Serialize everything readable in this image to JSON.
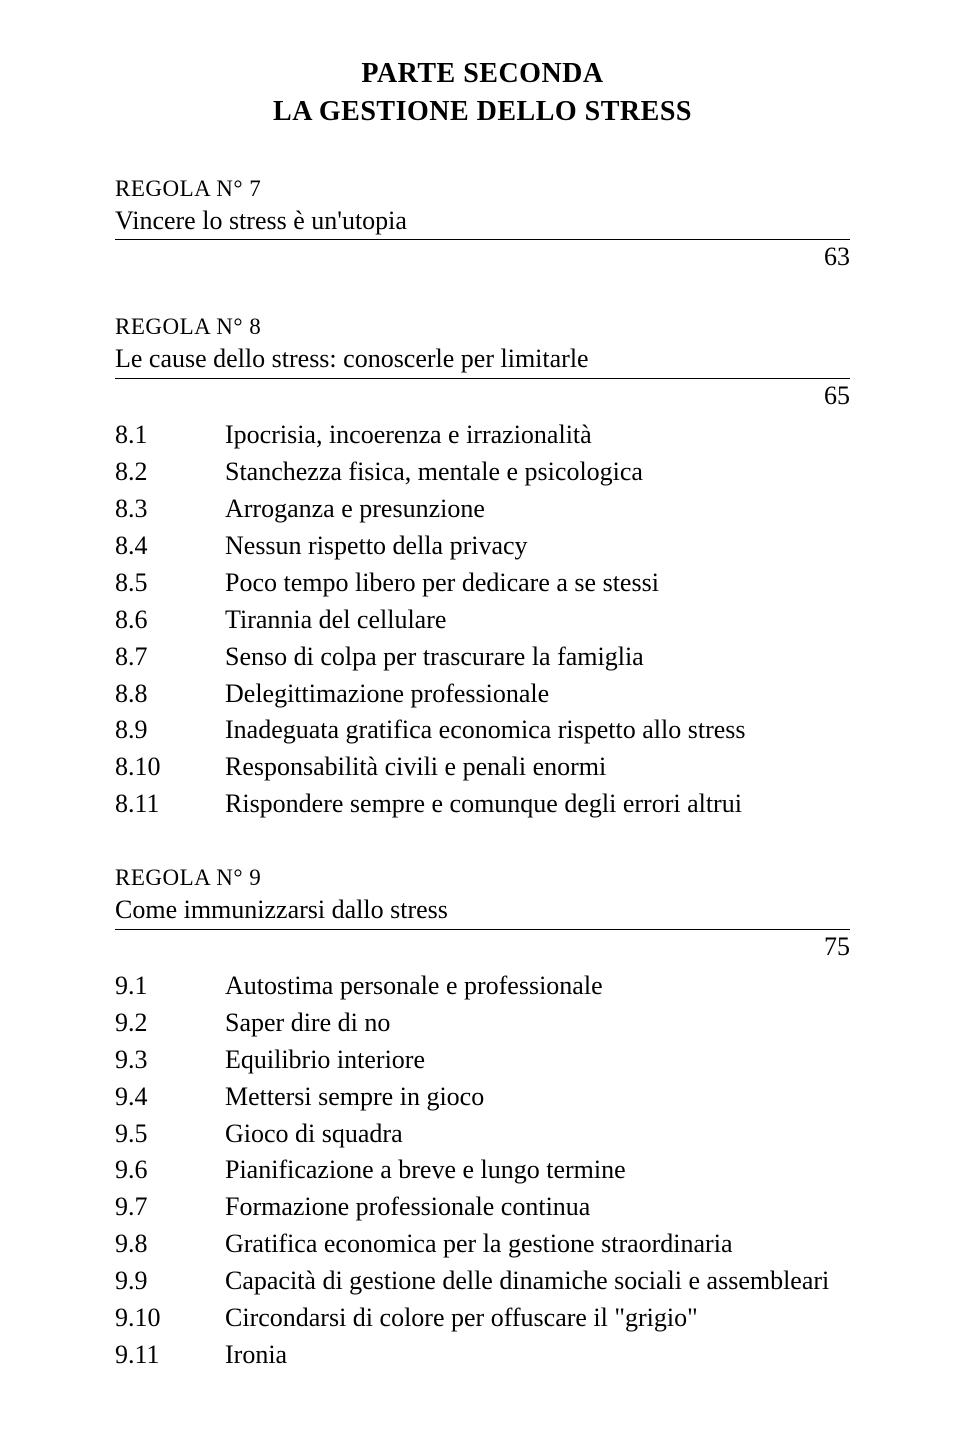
{
  "header": {
    "line1": "PARTE SECONDA",
    "line2": "LA GESTIONE DELLO STRESS"
  },
  "sections": [
    {
      "rule_label": "REGOLA N° 7",
      "title": "Vincere lo stress è un'utopia",
      "page": "63",
      "items": []
    },
    {
      "rule_label": "REGOLA N° 8",
      "title": "Le cause dello stress: conoscerle per limitarle",
      "page": "65",
      "items": [
        {
          "num": "8.1",
          "text": "Ipocrisia, incoerenza e irrazionalità"
        },
        {
          "num": "8.2",
          "text": "Stanchezza fisica, mentale e psicologica"
        },
        {
          "num": "8.3",
          "text": "Arroganza e presunzione"
        },
        {
          "num": "8.4",
          "text": "Nessun rispetto della privacy"
        },
        {
          "num": "8.5",
          "text": "Poco tempo libero per dedicare a se stessi"
        },
        {
          "num": "8.6",
          "text": "Tirannia del cellulare"
        },
        {
          "num": "8.7",
          "text": "Senso di colpa per trascurare la famiglia"
        },
        {
          "num": "8.8",
          "text": "Delegittimazione professionale"
        },
        {
          "num": "8.9",
          "text": "Inadeguata gratifica economica rispetto allo stress"
        },
        {
          "num": "8.10",
          "text": "Responsabilità civili e penali enormi"
        },
        {
          "num": "8.11",
          "text": "Rispondere sempre e comunque degli errori altrui"
        }
      ]
    },
    {
      "rule_label": "REGOLA N° 9",
      "title": "Come immunizzarsi dallo stress",
      "page": "75",
      "items": [
        {
          "num": "9.1",
          "text": "Autostima personale e professionale"
        },
        {
          "num": "9.2",
          "text": "Saper dire di no"
        },
        {
          "num": "9.3",
          "text": "Equilibrio interiore"
        },
        {
          "num": "9.4",
          "text": "Mettersi sempre in gioco"
        },
        {
          "num": "9.5",
          "text": "Gioco di squadra"
        },
        {
          "num": "9.6",
          "text": "Pianificazione a breve e lungo termine"
        },
        {
          "num": "9.7",
          "text": "Formazione professionale continua"
        },
        {
          "num": "9.8",
          "text": "Gratifica economica per la gestione straordinaria"
        },
        {
          "num": "9.9",
          "text": "Capacità di gestione delle dinamiche sociali e assembleari"
        },
        {
          "num": "9.10",
          "text": "Circondarsi di colore per offuscare il \"grigio\""
        },
        {
          "num": "9.11",
          "text": "Ironia"
        }
      ]
    }
  ]
}
